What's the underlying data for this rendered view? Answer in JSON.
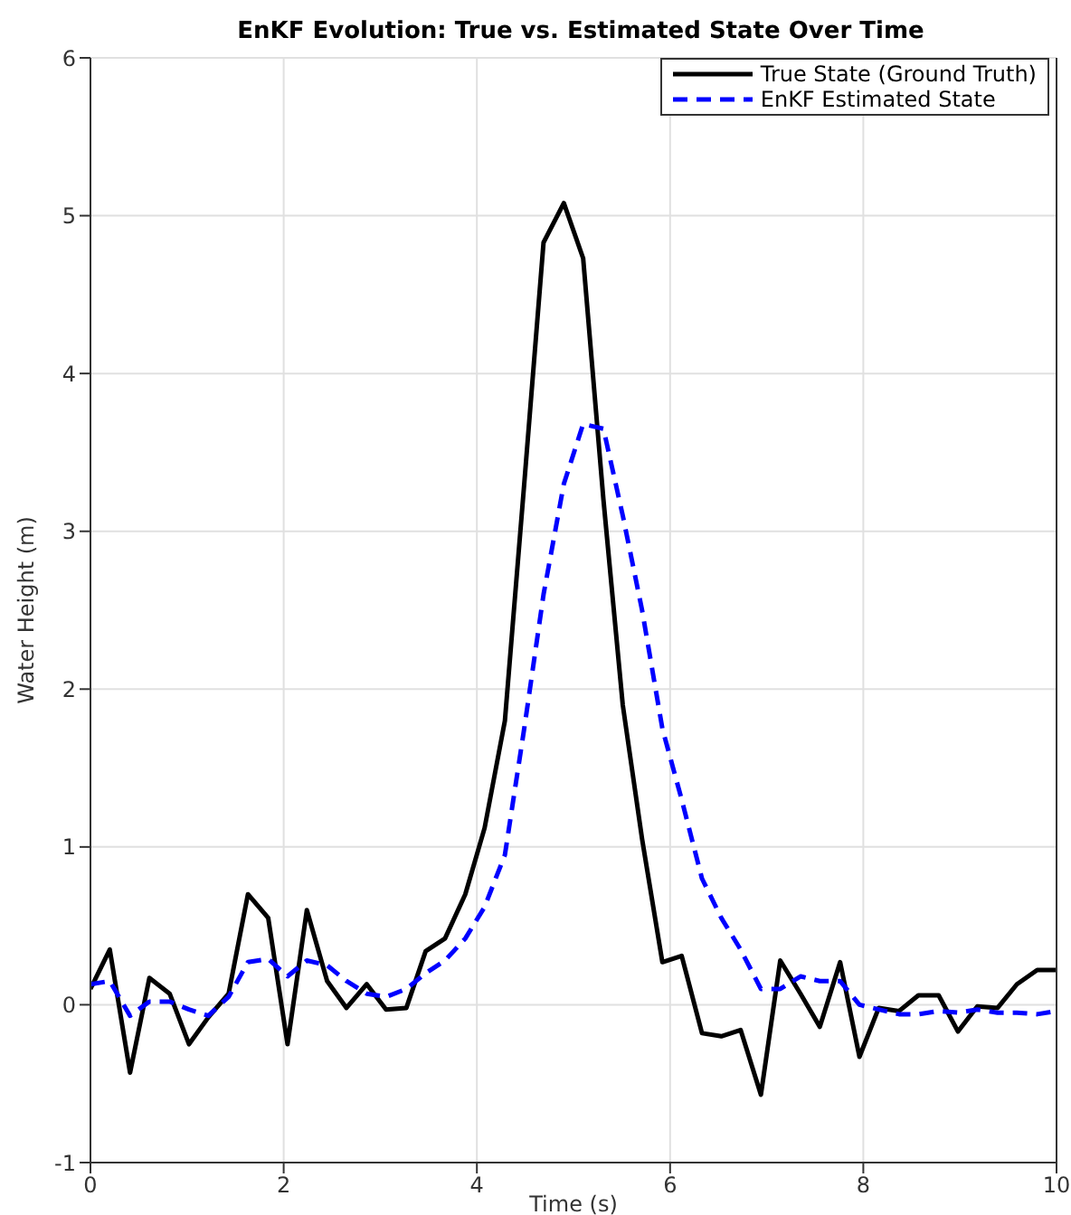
{
  "chart_data": {
    "type": "line",
    "title": "EnKF Evolution: True vs. Estimated State Over Time",
    "xlabel": "Time (s)",
    "ylabel": "Water Height (m)",
    "x": [
      0,
      0.2,
      0.41,
      0.61,
      0.82,
      1.02,
      1.22,
      1.43,
      1.63,
      1.84,
      2.04,
      2.24,
      2.45,
      2.65,
      2.86,
      3.06,
      3.27,
      3.47,
      3.67,
      3.88,
      4.08,
      4.29,
      4.49,
      4.69,
      4.9,
      5.1,
      5.31,
      5.51,
      5.71,
      5.92,
      6.12,
      6.33,
      6.53,
      6.73,
      6.94,
      7.14,
      7.35,
      7.55,
      7.76,
      7.96,
      8.16,
      8.37,
      8.57,
      8.78,
      8.98,
      9.18,
      9.39,
      9.59,
      9.8,
      10
    ],
    "series": [
      {
        "name": "True State (Ground Truth)",
        "color": "#000000",
        "line_style": "solid",
        "values": [
          0.1,
          0.35,
          -0.43,
          0.17,
          0.07,
          -0.25,
          -0.08,
          0.07,
          0.7,
          0.55,
          -0.25,
          0.6,
          0.15,
          -0.02,
          0.13,
          -0.03,
          -0.02,
          0.34,
          0.42,
          0.7,
          1.12,
          1.8,
          3.3,
          4.83,
          5.08,
          4.73,
          3.2,
          1.9,
          1.05,
          0.27,
          0.31,
          -0.18,
          -0.2,
          -0.16,
          -0.57,
          0.28,
          0.07,
          -0.14,
          0.27,
          -0.33,
          -0.02,
          -0.04,
          0.06,
          0.06,
          -0.17,
          -0.01,
          -0.02,
          0.13,
          0.22,
          0.22
        ]
      },
      {
        "name": "EnKF Estimated State",
        "color": "#0000ff",
        "line_style": "dashed",
        "values": [
          0.13,
          0.15,
          -0.07,
          0.02,
          0.02,
          -0.03,
          -0.07,
          0.05,
          0.27,
          0.29,
          0.18,
          0.28,
          0.25,
          0.15,
          0.07,
          0.05,
          0.1,
          0.2,
          0.28,
          0.42,
          0.62,
          0.95,
          1.75,
          2.6,
          3.3,
          3.68,
          3.65,
          3.1,
          2.5,
          1.75,
          1.3,
          0.8,
          0.55,
          0.35,
          0.1,
          0.1,
          0.18,
          0.15,
          0.15,
          0,
          -0.03,
          -0.06,
          -0.06,
          -0.04,
          -0.05,
          -0.03,
          -0.05,
          -0.05,
          -0.06,
          -0.04
        ]
      }
    ],
    "xlim": [
      0,
      10
    ],
    "xticks": [
      0,
      2,
      4,
      6,
      8,
      10
    ],
    "ylim": [
      -1,
      6
    ],
    "yticks": [
      -1,
      0,
      1,
      2,
      3,
      4,
      5,
      6
    ],
    "grid": true,
    "legend": "top right",
    "marker": "none"
  }
}
